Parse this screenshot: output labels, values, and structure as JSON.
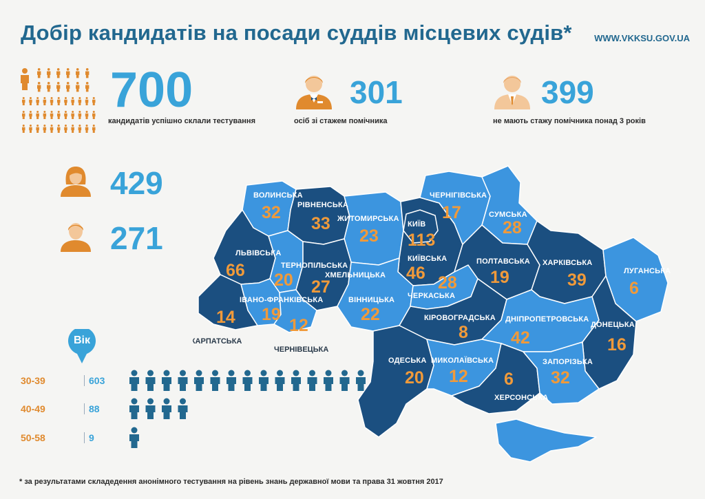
{
  "header": {
    "title": "Добір кандидатів на посади суддів місцевих судів*",
    "url": "WWW.VKKSU.GOV.UA"
  },
  "stats": {
    "total": {
      "value": "700",
      "caption": "кандидатів успішно склали тестування",
      "icon": "crowd-icon"
    },
    "assistants": {
      "value": "301",
      "caption": "осіб зі стажем помічника",
      "icon": "assistant-person-icon"
    },
    "non_assistants": {
      "value": "399",
      "caption": "не мають стажу помічника понад 3 років",
      "icon": "person-suit-icon"
    },
    "women": {
      "value": "429",
      "icon": "woman-icon"
    },
    "men": {
      "value": "271",
      "icon": "man-icon"
    }
  },
  "age": {
    "badge": "Вік",
    "groups": [
      {
        "range": "30-39",
        "count": "603",
        "figures": 15
      },
      {
        "range": "40-49",
        "count": "88",
        "figures": 4
      },
      {
        "range": "50-58",
        "count": "9",
        "figures": 1
      }
    ]
  },
  "regions": [
    {
      "name": "ВОЛИНСЬКА",
      "value": "32"
    },
    {
      "name": "РІВНЕНСЬКА",
      "value": "33"
    },
    {
      "name": "ЖИТОМИРСЬКА",
      "value": "23"
    },
    {
      "name": "КИЇВ",
      "value": "113"
    },
    {
      "name": "ЧЕРНІГІВСЬКА",
      "value": "17"
    },
    {
      "name": "СУМСЬКА",
      "value": "28"
    },
    {
      "name": "ЛЬВІВСЬКА",
      "value": "66"
    },
    {
      "name": "ТЕРНОПІЛЬСЬКА",
      "value": "20"
    },
    {
      "name": "ХМЕЛЬНИЦЬКА",
      "value": "27"
    },
    {
      "name": "КИЇВСЬКА",
      "value": "46"
    },
    {
      "name": "ЧЕРКАСЬКА",
      "value": "28"
    },
    {
      "name": "ПОЛТАВСЬКА",
      "value": "19"
    },
    {
      "name": "ХАРКІВСЬКА",
      "value": "39"
    },
    {
      "name": "ЛУГАНСЬКА",
      "value": "6"
    },
    {
      "name": "ІВАНО-ФРАНКІВСЬКА",
      "value": "19"
    },
    {
      "name": "ВІННИЦЬКА",
      "value": "22"
    },
    {
      "name": "КІРОВОГРАДСЬКА",
      "value": "8"
    },
    {
      "name": "ДНІПРОПЕТРОВСЬКА",
      "value": "42"
    },
    {
      "name": "ДОНЕЦЬКА",
      "value": "16"
    },
    {
      "name": "ЗАКАРПАТСЬКА",
      "value": "14"
    },
    {
      "name": "ЧЕРНІВЕЦЬКА",
      "value": "12"
    },
    {
      "name": "ОДЕСЬКА",
      "value": "20"
    },
    {
      "name": "МИКОЛАЇВСЬКА",
      "value": "12"
    },
    {
      "name": "ХЕРСОНСЬКА",
      "value": "6"
    },
    {
      "name": "ЗАПОРІЗЬКА",
      "value": "32"
    }
  ],
  "colors": {
    "title": "#22688f",
    "accent": "#39a3d9",
    "orange": "#e08a2e",
    "map_dark": "#1b4f80",
    "map_mid": "#2f79c0",
    "map_light": "#3c95df"
  },
  "footnote": "* за результатами складедення анонімного тестування на рівень знань державної мови та права 31 жовтня 2017"
}
